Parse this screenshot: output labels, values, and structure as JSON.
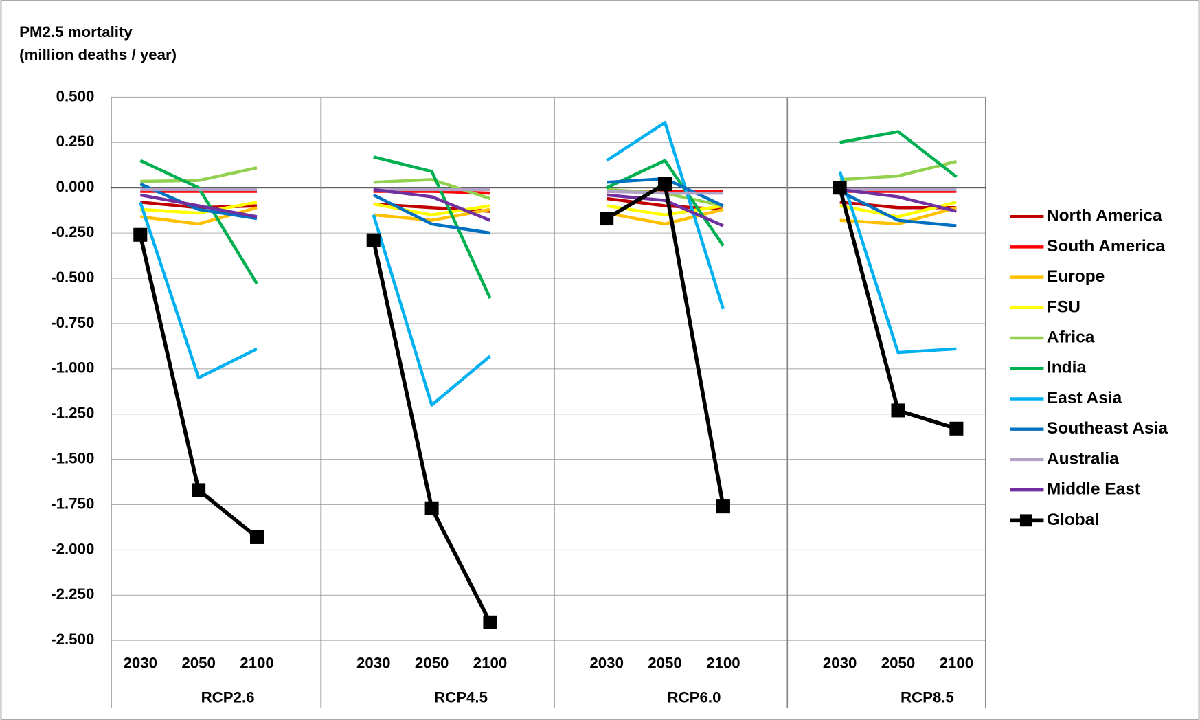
{
  "chart_data": {
    "type": "line",
    "ylabel_lines": [
      "PM2.5 mortality",
      "(million deaths / year)"
    ],
    "groups": [
      "RCP2.6",
      "RCP4.5",
      "RCP6.0",
      "RCP8.5"
    ],
    "categories": [
      "2030",
      "2050",
      "2100",
      null,
      "2030",
      "2050",
      "2100",
      null,
      "2030",
      "2050",
      "2100",
      null,
      "2030",
      "2050",
      "2100"
    ],
    "ylim": [
      -2.5,
      0.5
    ],
    "yticks": [
      {
        "value": 0.5,
        "label": "0.500"
      },
      {
        "value": 0.25,
        "label": "0.250"
      },
      {
        "value": 0,
        "label": "0.000"
      },
      {
        "value": -0.25,
        "label": "-0.250"
      },
      {
        "value": -0.5,
        "label": "-0.500"
      },
      {
        "value": -0.75,
        "label": "-0.750"
      },
      {
        "value": -1,
        "label": "-1.000"
      },
      {
        "value": -1.25,
        "label": "-1.250"
      },
      {
        "value": -1.5,
        "label": "-1.500"
      },
      {
        "value": -1.75,
        "label": "-1.750"
      },
      {
        "value": -2,
        "label": "-2.000"
      },
      {
        "value": -2.25,
        "label": "-2.250"
      },
      {
        "value": -2.5,
        "label": "-2.500"
      }
    ],
    "grid": true,
    "legend": "right",
    "series": [
      {
        "name": "North America",
        "color": "#c00000",
        "values": [
          -0.08,
          -0.11,
          -0.1,
          null,
          -0.09,
          -0.11,
          -0.13,
          null,
          -0.06,
          -0.1,
          -0.12,
          null,
          -0.08,
          -0.11,
          -0.11
        ]
      },
      {
        "name": "South America",
        "color": "#ff0000",
        "values": [
          -0.02,
          -0.02,
          -0.02,
          null,
          -0.02,
          -0.02,
          -0.03,
          null,
          -0.02,
          -0.02,
          -0.02,
          null,
          -0.02,
          -0.02,
          -0.02
        ]
      },
      {
        "name": "Europe",
        "color": "#ffc000",
        "values": [
          -0.16,
          -0.2,
          -0.11,
          null,
          -0.15,
          -0.18,
          -0.12,
          null,
          -0.14,
          -0.2,
          -0.12,
          null,
          -0.18,
          -0.2,
          -0.11
        ]
      },
      {
        "name": "FSU",
        "color": "#ffff00",
        "values": [
          -0.12,
          -0.14,
          -0.08,
          null,
          -0.09,
          -0.15,
          -0.1,
          null,
          -0.1,
          -0.15,
          -0.1,
          null,
          -0.1,
          -0.16,
          -0.08
        ]
      },
      {
        "name": "Africa",
        "color": "#92d050",
        "values": [
          0.035,
          0.04,
          0.11,
          null,
          0.03,
          0.045,
          -0.06,
          null,
          -0.01,
          -0.03,
          -0.1,
          null,
          0.045,
          0.065,
          0.145
        ]
      },
      {
        "name": "India",
        "color": "#00b050",
        "values": [
          0.15,
          0.0,
          -0.53,
          null,
          0.17,
          0.09,
          -0.61,
          null,
          0.0,
          0.15,
          -0.32,
          null,
          0.25,
          0.31,
          0.06
        ]
      },
      {
        "name": "East Asia",
        "color": "#00b0f0",
        "values": [
          -0.08,
          -1.05,
          -0.89,
          null,
          -0.15,
          -1.2,
          -0.93,
          null,
          0.15,
          0.36,
          -0.67,
          null,
          0.09,
          -0.91,
          -0.89
        ]
      },
      {
        "name": "Southeast Asia",
        "color": "#0070c0",
        "values": [
          0.02,
          -0.12,
          -0.17,
          null,
          -0.04,
          -0.2,
          -0.25,
          null,
          0.03,
          0.05,
          -0.1,
          null,
          -0.02,
          -0.18,
          -0.21
        ]
      },
      {
        "name": "Australia",
        "color": "#b3a2c7",
        "values": [
          -0.01,
          -0.01,
          -0.01,
          null,
          -0.01,
          -0.01,
          -0.01,
          null,
          -0.02,
          -0.03,
          -0.03,
          null,
          -0.01,
          -0.01,
          -0.01
        ]
      },
      {
        "name": "Middle East",
        "color": "#7030a0",
        "values": [
          -0.04,
          -0.1,
          -0.16,
          null,
          -0.01,
          -0.05,
          -0.18,
          null,
          -0.04,
          -0.07,
          -0.21,
          null,
          -0.01,
          -0.05,
          -0.13
        ]
      },
      {
        "name": "Global",
        "color": "#000000",
        "marker": "square",
        "values": [
          -0.26,
          -1.67,
          -1.93,
          null,
          -0.29,
          -1.77,
          -2.4,
          null,
          -0.17,
          0.02,
          -1.76,
          null,
          0.0,
          -1.23,
          -1.33
        ]
      }
    ]
  }
}
